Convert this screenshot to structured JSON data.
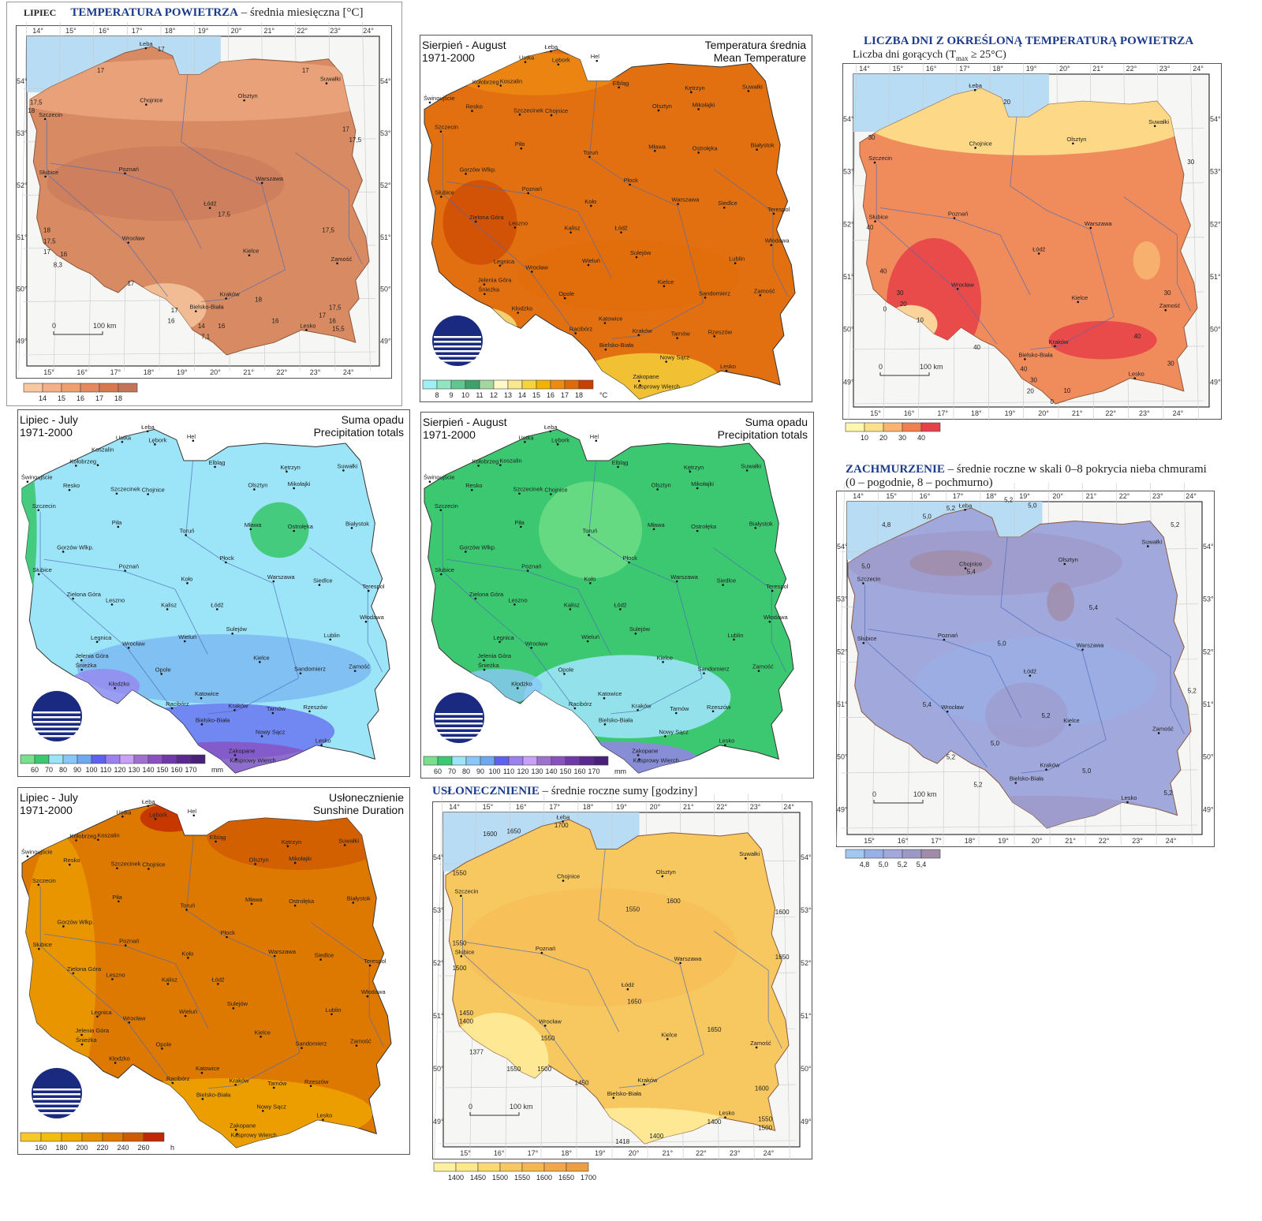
{
  "lon_ticks_top": [
    "14°",
    "15°",
    "16°",
    "17°",
    "18°",
    "19°",
    "20°",
    "21°",
    "22°",
    "23°",
    "24°"
  ],
  "lon_ticks_bottom": [
    "15°",
    "16°",
    "17°",
    "18°",
    "19°",
    "20°",
    "21°",
    "22°",
    "23°",
    "24°"
  ],
  "lat_ticks": [
    "54°",
    "53°",
    "52°",
    "51°",
    "50°",
    "49°"
  ],
  "scale": {
    "zero": "0",
    "label": "100 km"
  },
  "cities": [
    [
      "Łeba",
      17.55,
      54.76
    ],
    [
      "Hel",
      18.8,
      54.6
    ],
    [
      "Ustka",
      16.85,
      54.58
    ],
    [
      "Lębork",
      17.75,
      54.54
    ],
    [
      "Kołobrzeg",
      15.58,
      54.18
    ],
    [
      "Koszalin",
      16.18,
      54.19
    ],
    [
      "Elbląg",
      19.4,
      54.16
    ],
    [
      "Kętrzyn",
      21.37,
      54.08
    ],
    [
      "Suwałki",
      22.93,
      54.1
    ],
    [
      "Świnoujście",
      14.25,
      53.91
    ],
    [
      "Resko",
      15.4,
      53.77
    ],
    [
      "Szczecinek",
      16.7,
      53.71
    ],
    [
      "Chojnice",
      17.56,
      53.7
    ],
    [
      "Olsztyn",
      20.48,
      53.78
    ],
    [
      "Mikołajki",
      21.57,
      53.8
    ],
    [
      "Szczecin",
      14.55,
      53.43
    ],
    [
      "Piła",
      16.74,
      53.15
    ],
    [
      "Toruń",
      18.6,
      53.01
    ],
    [
      "Mława",
      20.38,
      53.11
    ],
    [
      "Ostrołęka",
      21.57,
      53.08
    ],
    [
      "Białystok",
      23.16,
      53.13
    ],
    [
      "Gorzów Wlkp.",
      15.23,
      52.73
    ],
    [
      "Płock",
      19.7,
      52.55
    ],
    [
      "Słubice",
      14.56,
      52.35
    ],
    [
      "Poznań",
      16.93,
      52.41
    ],
    [
      "Koło",
      18.64,
      52.2
    ],
    [
      "Warszawa",
      21.01,
      52.23
    ],
    [
      "Siedlce",
      22.27,
      52.17
    ],
    [
      "Terespol",
      23.62,
      52.07
    ],
    [
      "Łódź",
      19.46,
      51.76
    ],
    [
      "Kalisz",
      18.09,
      51.76
    ],
    [
      "Leszno",
      16.57,
      51.84
    ],
    [
      "Zielona Góra",
      15.5,
      51.94
    ],
    [
      "Sulejów",
      19.88,
      51.35
    ],
    [
      "Włodawa",
      23.55,
      51.55
    ],
    [
      "Lublin",
      22.57,
      51.25
    ],
    [
      "Legnica",
      16.16,
      51.21
    ],
    [
      "Wrocław",
      17.03,
      51.11
    ],
    [
      "Wieluń",
      18.57,
      51.22
    ],
    [
      "Jelenia Góra",
      15.73,
      50.9
    ],
    [
      "Kielce",
      20.63,
      50.87
    ],
    [
      "Sandomierz",
      21.75,
      50.68
    ],
    [
      "Zamość",
      23.25,
      50.72
    ],
    [
      "Śnieżka",
      15.74,
      50.74
    ],
    [
      "Opole",
      17.93,
      50.67
    ],
    [
      "Kłodzko",
      16.65,
      50.43
    ],
    [
      "Racibórz",
      18.22,
      50.09
    ],
    [
      "Katowice",
      19.02,
      50.26
    ],
    [
      "Kraków",
      19.94,
      50.06
    ],
    [
      "Tarnów",
      20.99,
      50.01
    ],
    [
      "Rzeszów",
      22.0,
      50.04
    ],
    [
      "Bielsko-Biała",
      19.04,
      49.82
    ],
    [
      "Nowy Sącz",
      20.69,
      49.62
    ],
    [
      "Lesko",
      22.33,
      49.47
    ],
    [
      "Zakopane",
      19.95,
      49.3
    ],
    [
      "Kasprowy Wierch",
      19.98,
      49.23
    ]
  ],
  "cities_topo": [
    [
      "Łeba",
      17.55,
      54.76
    ],
    [
      "Suwałki",
      22.93,
      54.1
    ],
    [
      "Olsztyn",
      20.48,
      53.78
    ],
    [
      "Chojnice",
      17.56,
      53.7
    ],
    [
      "Szczecin",
      14.55,
      53.43
    ],
    [
      "Słubice",
      14.56,
      52.35
    ],
    [
      "Poznań",
      16.93,
      52.41
    ],
    [
      "Warszawa",
      21.01,
      52.23
    ],
    [
      "Łódź",
      19.46,
      51.76
    ],
    [
      "Wrocław",
      17.03,
      51.11
    ],
    [
      "Kielce",
      20.63,
      50.87
    ],
    [
      "Zamość",
      23.25,
      50.72
    ],
    [
      "Kraków",
      19.94,
      50.06
    ],
    [
      "Bielsko-Biała",
      19.04,
      49.82
    ],
    [
      "Lesko",
      22.33,
      49.47
    ]
  ],
  "panels": [
    {
      "id": "july-temp",
      "title_prefix": "LIPIEC",
      "title_bold": "TEMPERATURA POWIETRZA",
      "title_rest": " – średnia miesięczna [°C]",
      "base_color": "#d88a62",
      "legend": {
        "colors": [
          "#f8c8a0",
          "#f4b088",
          "#eea070",
          "#e58a60",
          "#d87850",
          "#c47458"
        ],
        "labels": [
          "14",
          "15",
          "16",
          "17",
          "18"
        ],
        "unit": ""
      },
      "isolines": [
        [
          "17",
          17.9,
          54.7
        ],
        [
          "17",
          16.1,
          54.3
        ],
        [
          "17",
          22.2,
          54.3
        ],
        [
          "17,5",
          14.1,
          53.7
        ],
        [
          "18",
          14.2,
          53.55
        ],
        [
          "17",
          23.4,
          53.2
        ],
        [
          "17,5",
          23.6,
          53.0
        ],
        [
          "18",
          14.5,
          51.3
        ],
        [
          "17,5",
          14.5,
          51.2
        ],
        [
          "17",
          14.5,
          51.1
        ],
        [
          "16",
          15.0,
          50.85
        ],
        [
          "8,3",
          14.8,
          50.65
        ],
        [
          "17,5",
          19.7,
          51.6
        ],
        [
          "17,5",
          22.8,
          51.3
        ],
        [
          "17",
          17.0,
          50.3
        ],
        [
          "18",
          20.8,
          50.0
        ],
        [
          "17",
          18.3,
          49.8
        ],
        [
          "16",
          18.2,
          49.6
        ],
        [
          "14",
          19.1,
          49.5
        ],
        [
          "16",
          19.7,
          49.5
        ],
        [
          "7,1",
          19.2,
          49.3
        ],
        [
          "16",
          21.3,
          49.6
        ],
        [
          "17,5",
          23.0,
          49.85
        ],
        [
          "17",
          22.7,
          49.7
        ],
        [
          "16",
          23.0,
          49.6
        ],
        [
          "15,5",
          23.1,
          49.45
        ]
      ]
    },
    {
      "id": "august-temp",
      "hdr_left": [
        "Sierpień - August",
        "1971-2000"
      ],
      "hdr_right": [
        "Temperatura średnia",
        "Mean Temperature"
      ],
      "base_color": "#e27010",
      "legend": {
        "colors": [
          "#9ff0f5",
          "#8fe6c0",
          "#5cc890",
          "#3aa36a",
          "#a4d6a0",
          "#fff8c8",
          "#fae88a",
          "#f5d43c",
          "#f5b000",
          "#ee8a10",
          "#e06a05",
          "#c84000"
        ],
        "labels": [
          "8",
          "9",
          "10",
          "11",
          "12",
          "13",
          "14",
          "15",
          "16",
          "17",
          "18"
        ],
        "unit": "°C"
      }
    },
    {
      "id": "hot-days",
      "title_bold": "LICZBA DNI Z OKREŚLONĄ TEMPERATURĄ POWIETRZA",
      "subtitle": "Liczba dni gorących (T",
      "subtitle_sub": "max",
      "subtitle_rest": " ≥ 25°C)",
      "base_color": "#f08c5c",
      "legend": {
        "colors": [
          "#fff6b0",
          "#fde08c",
          "#f8b470",
          "#f08050",
          "#e84048"
        ],
        "labels": [
          "10",
          "20",
          "30",
          "40"
        ],
        "unit": ""
      },
      "isolines": [
        [
          "20",
          18.4,
          54.5
        ],
        [
          "30",
          14.35,
          53.85
        ],
        [
          "30",
          23.9,
          53.4
        ],
        [
          "40",
          14.3,
          52.3
        ],
        [
          "40",
          14.7,
          51.4
        ],
        [
          "30",
          15.2,
          51.0
        ],
        [
          "20",
          15.3,
          50.9
        ],
        [
          "0",
          14.8,
          50.7
        ],
        [
          "10",
          15.8,
          50.5
        ],
        [
          "40",
          17.5,
          50.0
        ],
        [
          "40",
          18.9,
          49.6
        ],
        [
          "30",
          23.2,
          50.9
        ],
        [
          "40",
          22.3,
          50.2
        ],
        [
          "30",
          23.3,
          49.7
        ],
        [
          "30",
          19.2,
          49.4
        ],
        [
          "20",
          19.1,
          49.3
        ],
        [
          "10",
          20.2,
          49.2
        ],
        [
          "0",
          19.8,
          49.0
        ]
      ]
    },
    {
      "id": "july-precip",
      "hdr_left": [
        "Lipiec - July",
        "1971-2000"
      ],
      "hdr_right": [
        "Suma opadu",
        "Precipitation totals"
      ],
      "base_color": "#9ce4f8",
      "legend": {
        "colors": [
          "#78e08c",
          "#3cc870",
          "#9ce4f8",
          "#88c8f8",
          "#6ea8f0",
          "#6060f0",
          "#9a80f0",
          "#c8a0f8",
          "#a070d0",
          "#8a50c0",
          "#7038a8",
          "#5a2890",
          "#48207a"
        ],
        "labels": [
          "60",
          "70",
          "80",
          "90",
          "100",
          "110",
          "120",
          "130",
          "140",
          "150",
          "160",
          "170"
        ],
        "unit": "mm"
      }
    },
    {
      "id": "august-precip",
      "hdr_left": [
        "Sierpień - August",
        "1971-2000"
      ],
      "hdr_right": [
        "Suma opadu",
        "Precipitation totals"
      ],
      "base_color": "#3cc870",
      "legend": {
        "colors": [
          "#78e08c",
          "#3cc870",
          "#9ce4f8",
          "#88c8f8",
          "#6ea8f0",
          "#6060f0",
          "#9a80f0",
          "#c8a0f8",
          "#a070d0",
          "#8a50c0",
          "#7038a8",
          "#5a2890",
          "#48207a"
        ],
        "labels": [
          "60",
          "70",
          "80",
          "90",
          "100",
          "110",
          "120",
          "130",
          "140",
          "150",
          "160",
          "170"
        ],
        "unit": "mm"
      }
    },
    {
      "id": "cloudiness",
      "title_bold": "ZACHMURZENIE",
      "title_rest": " – średnie roczne w skali 0–8 pokrycia nieba chmurami",
      "title_line2": "(0 – pogodnie, 8 – pochmurno)",
      "base_color": "#a0a8dc",
      "legend": {
        "colors": [
          "#a0c8f0",
          "#98b0e8",
          "#a0a8dc",
          "#9c98c8",
          "#a08ca8"
        ],
        "labels": [
          "4,8",
          "5,0",
          "5,2",
          "5,4"
        ],
        "unit": ""
      },
      "isolines": [
        [
          "5,2",
          18.7,
          54.9
        ],
        [
          "5,0",
          19.4,
          54.8
        ],
        [
          "5,2",
          17.0,
          54.75
        ],
        [
          "5,0",
          16.3,
          54.6
        ],
        [
          "4,8",
          15.1,
          54.45
        ],
        [
          "5,2",
          23.6,
          54.45
        ],
        [
          "5,4",
          17.6,
          53.6
        ],
        [
          "5,0",
          14.5,
          53.5
        ],
        [
          "5,4",
          21.2,
          52.95
        ],
        [
          "5,0",
          18.5,
          52.3
        ],
        [
          "5,2",
          24.1,
          51.45
        ],
        [
          "5,4",
          16.3,
          51.2
        ],
        [
          "5,2",
          19.8,
          51.0
        ],
        [
          "5,0",
          18.3,
          50.5
        ],
        [
          "5,2",
          17.0,
          50.25
        ],
        [
          "5,0",
          21.0,
          50.0
        ],
        [
          "5,2",
          17.8,
          49.75
        ],
        [
          "5,2",
          23.4,
          49.6
        ]
      ]
    },
    {
      "id": "july-sunshine",
      "hdr_left": [
        "Lipiec - July",
        "1971-2000"
      ],
      "hdr_right": [
        "Usłonecznienie",
        "Sunshine Duration"
      ],
      "base_color": "#dd7800",
      "legend": {
        "colors": [
          "#f8c828",
          "#f5bc10",
          "#f0a800",
          "#e89000",
          "#dd7800",
          "#d05a00",
          "#c02800"
        ],
        "labels": [
          "160",
          "180",
          "200",
          "220",
          "240",
          "260"
        ],
        "unit": "h"
      }
    },
    {
      "id": "annual-sunshine",
      "title_bold": "USŁONECZNIENIE",
      "title_rest": " – średnie roczne sumy [godziny]",
      "base_color": "#f8c860",
      "legend": {
        "colors": [
          "#fff0a0",
          "#fde88a",
          "#fbd870",
          "#f8c860",
          "#f5b850",
          "#f2a848",
          "#eea040"
        ],
        "labels": [
          "1400",
          "1450",
          "1500",
          "1550",
          "1600",
          "1650",
          "1700"
        ],
        "unit": ""
      },
      "isolines": [
        [
          "1700",
          17.3,
          54.85
        ],
        [
          "1600",
          15.2,
          54.5
        ],
        [
          "1650",
          15.9,
          54.55
        ],
        [
          "1550",
          14.3,
          53.8
        ],
        [
          "1550",
          19.4,
          53.15
        ],
        [
          "1600",
          20.6,
          53.3
        ],
        [
          "1600",
          23.8,
          53.1
        ],
        [
          "1550",
          14.3,
          52.45
        ],
        [
          "1500",
          14.3,
          52.1
        ],
        [
          "1650",
          23.8,
          52.3
        ],
        [
          "1450",
          14.5,
          51.3
        ],
        [
          "1400",
          14.5,
          51.15
        ],
        [
          "1650",
          19.45,
          51.5
        ],
        [
          "1650",
          21.8,
          51.0
        ],
        [
          "1550",
          16.9,
          50.85
        ],
        [
          "1377",
          14.8,
          50.6
        ],
        [
          "1550",
          15.9,
          50.3
        ],
        [
          "1500",
          16.8,
          50.3
        ],
        [
          "1450",
          17.9,
          50.05
        ],
        [
          "1600",
          23.2,
          49.95
        ],
        [
          "1400",
          21.8,
          49.35
        ],
        [
          "1550",
          23.3,
          49.4
        ],
        [
          "1500",
          23.3,
          49.25
        ],
        [
          "1400",
          20.1,
          49.1
        ],
        [
          "1418",
          19.1,
          49.0
        ]
      ]
    }
  ]
}
